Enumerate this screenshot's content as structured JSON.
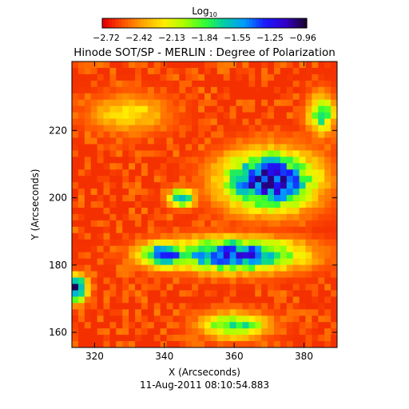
{
  "chart_data": {
    "type": "heatmap",
    "title": "Hinode SOT/SP - MERLIN : Degree of Polarization",
    "subtitle": "11-Aug-2011 08:10:54.883",
    "colorbar": {
      "label_base": "Log",
      "label_sub": "10",
      "ticks": [
        "−2.72",
        "−2.42",
        "−2.13",
        "−1.84",
        "−1.55",
        "−1.25",
        "−0.96"
      ],
      "range": [
        -2.72,
        -0.96
      ],
      "colors": [
        "#e60000",
        "#ff5500",
        "#ffaa00",
        "#ffee00",
        "#aaff00",
        "#33ff33",
        "#00ccaa",
        "#0099ff",
        "#1a1aff",
        "#3300cc",
        "#1a0033"
      ]
    },
    "xlabel": "X (Arcseconds)",
    "ylabel": "Y (Arcseconds)",
    "xlim": [
      313.5,
      389.5
    ],
    "ylim": [
      155.5,
      240.5
    ],
    "xticks": [
      320,
      340,
      360,
      380
    ],
    "yticks": [
      160,
      180,
      200,
      220
    ],
    "grid": false,
    "cells": {
      "nx": 42,
      "ny": 45,
      "description_values": "log10 degree of polarization; high values (blue/purple) in a band around X=345-385, Y=175-215 and at lower-left edge; background mostly red/orange",
      "regions": [
        {
          "cx": 370,
          "cy": 205,
          "rx": 14,
          "ry": 9,
          "value": -1.05
        },
        {
          "cx": 360,
          "cy": 183,
          "rx": 20,
          "ry": 5,
          "value": -1.15
        },
        {
          "cx": 340,
          "cy": 183,
          "rx": 8,
          "ry": 4,
          "value": -1.3
        },
        {
          "cx": 315,
          "cy": 173,
          "rx": 3,
          "ry": 4,
          "value": -1.0
        },
        {
          "cx": 385,
          "cy": 225,
          "rx": 4,
          "ry": 6,
          "value": -1.7
        },
        {
          "cx": 330,
          "cy": 225,
          "rx": 12,
          "ry": 6,
          "value": -2.2
        },
        {
          "cx": 360,
          "cy": 162,
          "rx": 10,
          "ry": 4,
          "value": -1.7
        },
        {
          "cx": 345,
          "cy": 200,
          "rx": 4,
          "ry": 3,
          "value": -1.6
        }
      ]
    }
  }
}
